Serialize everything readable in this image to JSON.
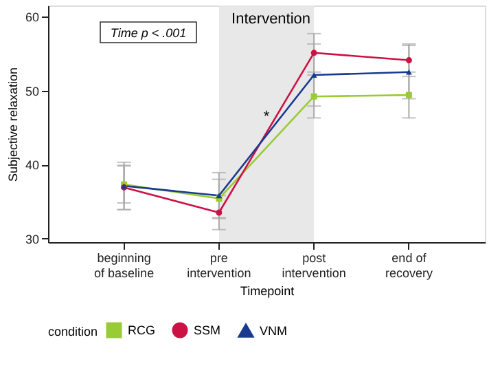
{
  "chart_data": {
    "type": "line",
    "xlabel": "Timepoint",
    "ylabel": "Subjective relaxation",
    "legend_title": "condition",
    "categories": [
      "beginning\nof baseline",
      "pre\nintervention",
      "post\nintervention",
      "end of\nrecovery"
    ],
    "series": [
      {
        "name": "RCG",
        "color": "#99cc33",
        "marker": "square",
        "values": [
          37.3,
          35.4,
          49.2,
          49.4
        ],
        "errors": [
          2.5,
          2.6,
          2.9,
          3.1
        ]
      },
      {
        "name": "SSM",
        "color": "#cc1144",
        "marker": "circle",
        "values": [
          36.9,
          33.5,
          55.1,
          54.1
        ],
        "errors": [
          3.0,
          2.3,
          2.6,
          2.2
        ]
      },
      {
        "name": "VNM",
        "color": "#1a3a8f",
        "marker": "triangle",
        "values": [
          37.1,
          35.8,
          52.1,
          52.5
        ],
        "errors": [
          3.2,
          3.1,
          4.2,
          3.6
        ]
      }
    ],
    "bands": [
      {
        "axis": "x",
        "from": "pre\nintervention",
        "to": "post\nintervention",
        "label": "Intervention",
        "color": "#e6e6e6"
      }
    ],
    "annotations": [
      "Time p < .001",
      "*"
    ],
    "ylim": [
      29.5,
      61.5
    ],
    "yticks": [
      30,
      40,
      50,
      60
    ],
    "grid": false,
    "legend": "bottom"
  }
}
